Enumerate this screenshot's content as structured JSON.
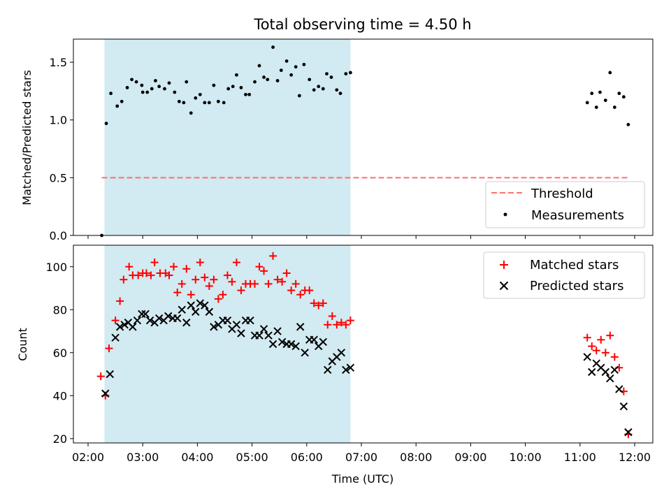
{
  "chart_data": [
    {
      "type": "scatter",
      "title": "Total observing time = 4.50 h",
      "ylabel": "Matched/Predicted stars",
      "xlabel": "",
      "xlim": [
        "02:00",
        "12:00"
      ],
      "ylim": [
        0,
        1.7
      ],
      "yticks": [
        "0.0",
        "0.5",
        "1.0",
        "1.5"
      ],
      "shaded_region": {
        "x": [
          "02:18",
          "06:48"
        ],
        "color": "#add8e6"
      },
      "threshold": {
        "name": "Threshold",
        "value": 0.5,
        "x": [
          "02:15",
          "11:55"
        ],
        "color": "#ff6e6e"
      },
      "legend": [
        "Threshold",
        "Measurements"
      ],
      "legend_position": "lower right",
      "series": [
        {
          "name": "Measurements",
          "color": "#000000",
          "marker": "dot",
          "points": [
            [
              "02:15",
              0.0
            ],
            [
              "02:20",
              0.97
            ],
            [
              "02:25",
              1.23
            ],
            [
              "02:32",
              1.12
            ],
            [
              "02:37",
              1.16
            ],
            [
              "02:43",
              1.28
            ],
            [
              "02:48",
              1.35
            ],
            [
              "02:53",
              1.33
            ],
            [
              "02:59",
              1.3
            ],
            [
              "03:00",
              1.24
            ],
            [
              "03:05",
              1.24
            ],
            [
              "03:10",
              1.27
            ],
            [
              "03:14",
              1.34
            ],
            [
              "03:18",
              1.29
            ],
            [
              "03:24",
              1.27
            ],
            [
              "03:29",
              1.32
            ],
            [
              "03:35",
              1.24
            ],
            [
              "03:40",
              1.16
            ],
            [
              "03:45",
              1.15
            ],
            [
              "03:48",
              1.33
            ],
            [
              "03:53",
              1.06
            ],
            [
              "03:58",
              1.19
            ],
            [
              "04:03",
              1.22
            ],
            [
              "04:08",
              1.15
            ],
            [
              "04:13",
              1.15
            ],
            [
              "04:18",
              1.3
            ],
            [
              "04:23",
              1.16
            ],
            [
              "04:29",
              1.15
            ],
            [
              "04:34",
              1.27
            ],
            [
              "04:39",
              1.29
            ],
            [
              "04:43",
              1.39
            ],
            [
              "04:48",
              1.28
            ],
            [
              "04:53",
              1.22
            ],
            [
              "04:57",
              1.22
            ],
            [
              "05:03",
              1.33
            ],
            [
              "05:08",
              1.47
            ],
            [
              "05:13",
              1.37
            ],
            [
              "05:17",
              1.35
            ],
            [
              "05:23",
              1.63
            ],
            [
              "05:28",
              1.34
            ],
            [
              "05:32",
              1.43
            ],
            [
              "05:38",
              1.51
            ],
            [
              "05:43",
              1.39
            ],
            [
              "05:48",
              1.46
            ],
            [
              "05:52",
              1.21
            ],
            [
              "05:57",
              1.48
            ],
            [
              "06:03",
              1.35
            ],
            [
              "06:08",
              1.26
            ],
            [
              "06:13",
              1.29
            ],
            [
              "06:18",
              1.27
            ],
            [
              "06:22",
              1.4
            ],
            [
              "06:27",
              1.37
            ],
            [
              "06:33",
              1.26
            ],
            [
              "06:37",
              1.23
            ],
            [
              "06:43",
              1.4
            ],
            [
              "06:48",
              1.41
            ],
            [
              "11:08",
              1.15
            ],
            [
              "11:13",
              1.23
            ],
            [
              "11:18",
              1.11
            ],
            [
              "11:22",
              1.24
            ],
            [
              "11:28",
              1.17
            ],
            [
              "11:33",
              1.41
            ],
            [
              "11:38",
              1.11
            ],
            [
              "11:43",
              1.23
            ],
            [
              "11:48",
              1.2
            ],
            [
              "11:53",
              0.96
            ]
          ]
        }
      ]
    },
    {
      "type": "scatter",
      "title": "",
      "ylabel": "Count",
      "xlabel": "Time (UTC)",
      "xlim": [
        "02:00",
        "12:00"
      ],
      "ylim": [
        18,
        110
      ],
      "yticks": [
        "20",
        "40",
        "60",
        "80",
        "100"
      ],
      "xticks": [
        "02:00",
        "03:00",
        "04:00",
        "05:00",
        "06:00",
        "07:00",
        "08:00",
        "09:00",
        "10:00",
        "11:00",
        "12:00"
      ],
      "shaded_region": {
        "x": [
          "02:18",
          "06:48"
        ],
        "color": "#add8e6"
      },
      "legend": [
        "Matched stars",
        "Predicted stars"
      ],
      "legend_position": "upper right",
      "series": [
        {
          "name": "Matched stars",
          "color": "#ff0000",
          "marker": "plus",
          "points": [
            [
              "02:14",
              49
            ],
            [
              "02:19",
              40
            ],
            [
              "02:23",
              62
            ],
            [
              "02:30",
              75
            ],
            [
              "02:35",
              84
            ],
            [
              "02:39",
              94
            ],
            [
              "02:45",
              100
            ],
            [
              "02:49",
              96
            ],
            [
              "02:55",
              96
            ],
            [
              "03:00",
              97
            ],
            [
              "03:04",
              97
            ],
            [
              "03:09",
              96
            ],
            [
              "03:13",
              102
            ],
            [
              "03:19",
              97
            ],
            [
              "03:25",
              97
            ],
            [
              "03:29",
              96
            ],
            [
              "03:34",
              100
            ],
            [
              "03:38",
              88
            ],
            [
              "03:43",
              92
            ],
            [
              "03:48",
              99
            ],
            [
              "03:53",
              87
            ],
            [
              "03:58",
              94
            ],
            [
              "04:03",
              102
            ],
            [
              "04:08",
              95
            ],
            [
              "04:13",
              91
            ],
            [
              "04:18",
              94
            ],
            [
              "04:23",
              85
            ],
            [
              "04:28",
              87
            ],
            [
              "04:33",
              96
            ],
            [
              "04:38",
              93
            ],
            [
              "04:43",
              102
            ],
            [
              "04:48",
              89
            ],
            [
              "04:53",
              92
            ],
            [
              "04:58",
              92
            ],
            [
              "05:03",
              92
            ],
            [
              "05:08",
              100
            ],
            [
              "05:13",
              98
            ],
            [
              "05:18",
              92
            ],
            [
              "05:23",
              105
            ],
            [
              "05:28",
              94
            ],
            [
              "05:33",
              93
            ],
            [
              "05:38",
              97
            ],
            [
              "05:43",
              89
            ],
            [
              "05:48",
              92
            ],
            [
              "05:53",
              87
            ],
            [
              "05:58",
              89
            ],
            [
              "06:03",
              89
            ],
            [
              "06:08",
              83
            ],
            [
              "06:13",
              82
            ],
            [
              "06:18",
              83
            ],
            [
              "06:23",
              73
            ],
            [
              "06:28",
              77
            ],
            [
              "06:33",
              73
            ],
            [
              "06:38",
              74
            ],
            [
              "06:43",
              73
            ],
            [
              "06:48",
              75
            ],
            [
              "11:08",
              67
            ],
            [
              "11:13",
              63
            ],
            [
              "11:18",
              61
            ],
            [
              "11:23",
              66
            ],
            [
              "11:28",
              60
            ],
            [
              "11:33",
              68
            ],
            [
              "11:38",
              58
            ],
            [
              "11:43",
              53
            ],
            [
              "11:48",
              42
            ],
            [
              "11:53",
              22
            ]
          ]
        },
        {
          "name": "Predicted stars",
          "color": "#000000",
          "marker": "x",
          "points": [
            [
              "02:19",
              41
            ],
            [
              "02:24",
              50
            ],
            [
              "02:30",
              67
            ],
            [
              "02:35",
              72
            ],
            [
              "02:40",
              73
            ],
            [
              "02:44",
              74
            ],
            [
              "02:49",
              72
            ],
            [
              "02:54",
              75
            ],
            [
              "02:59",
              78
            ],
            [
              "03:03",
              78
            ],
            [
              "03:08",
              75
            ],
            [
              "03:13",
              74
            ],
            [
              "03:18",
              76
            ],
            [
              "03:23",
              75
            ],
            [
              "03:28",
              77
            ],
            [
              "03:33",
              76
            ],
            [
              "03:38",
              76
            ],
            [
              "03:43",
              80
            ],
            [
              "03:48",
              74
            ],
            [
              "03:53",
              82
            ],
            [
              "03:58",
              79
            ],
            [
              "04:03",
              83
            ],
            [
              "04:08",
              82
            ],
            [
              "04:13",
              79
            ],
            [
              "04:18",
              72
            ],
            [
              "04:23",
              73
            ],
            [
              "04:28",
              75
            ],
            [
              "04:33",
              75
            ],
            [
              "04:38",
              71
            ],
            [
              "04:43",
              73
            ],
            [
              "04:48",
              69
            ],
            [
              "04:53",
              75
            ],
            [
              "04:58",
              75
            ],
            [
              "05:03",
              68
            ],
            [
              "05:08",
              68
            ],
            [
              "05:13",
              71
            ],
            [
              "05:18",
              68
            ],
            [
              "05:23",
              64
            ],
            [
              "05:28",
              70
            ],
            [
              "05:33",
              65
            ],
            [
              "05:38",
              64
            ],
            [
              "05:43",
              64
            ],
            [
              "05:48",
              63
            ],
            [
              "05:53",
              72
            ],
            [
              "05:58",
              60
            ],
            [
              "06:03",
              66
            ],
            [
              "06:08",
              66
            ],
            [
              "06:13",
              63
            ],
            [
              "06:18",
              65
            ],
            [
              "06:23",
              52
            ],
            [
              "06:28",
              56
            ],
            [
              "06:33",
              58
            ],
            [
              "06:38",
              60
            ],
            [
              "06:43",
              52
            ],
            [
              "06:48",
              53
            ],
            [
              "11:08",
              58
            ],
            [
              "11:13",
              51
            ],
            [
              "11:18",
              55
            ],
            [
              "11:23",
              53
            ],
            [
              "11:28",
              51
            ],
            [
              "11:33",
              48
            ],
            [
              "11:38",
              52
            ],
            [
              "11:43",
              43
            ],
            [
              "11:48",
              35
            ],
            [
              "11:53",
              23
            ]
          ]
        }
      ]
    }
  ]
}
